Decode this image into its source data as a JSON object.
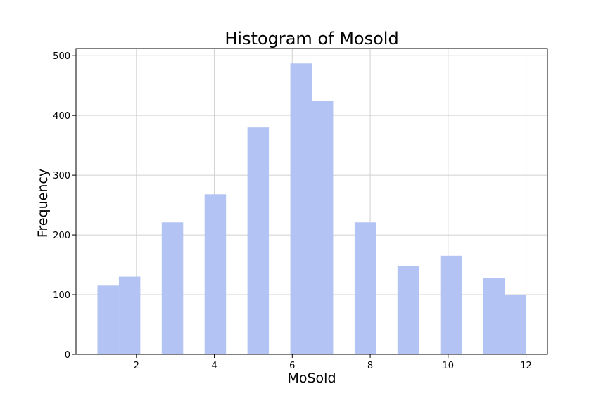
{
  "chart_data": {
    "type": "bar",
    "title": "Histogram of Mosold",
    "xlabel": "MoSold",
    "ylabel": "Frequency",
    "xlim": [
      0.45,
      12.55
    ],
    "ylim": [
      0,
      512
    ],
    "grid": true,
    "color": "#b3c3f3",
    "bins": [
      {
        "start": 1.0,
        "end": 1.55,
        "count": 115
      },
      {
        "start": 1.55,
        "end": 2.1,
        "count": 130
      },
      {
        "start": 2.65,
        "end": 3.2,
        "count": 221
      },
      {
        "start": 3.75,
        "end": 4.3,
        "count": 268
      },
      {
        "start": 4.85,
        "end": 5.4,
        "count": 380
      },
      {
        "start": 5.95,
        "end": 6.5,
        "count": 487
      },
      {
        "start": 6.5,
        "end": 7.05,
        "count": 424
      },
      {
        "start": 7.6,
        "end": 8.15,
        "count": 221
      },
      {
        "start": 8.7,
        "end": 9.25,
        "count": 148
      },
      {
        "start": 9.8,
        "end": 10.35,
        "count": 165
      },
      {
        "start": 10.9,
        "end": 11.45,
        "count": 128
      },
      {
        "start": 11.45,
        "end": 12.0,
        "count": 99
      }
    ],
    "xticks": [
      2,
      4,
      6,
      8,
      10,
      12
    ],
    "yticks": [
      0,
      100,
      200,
      300,
      400,
      500
    ]
  }
}
